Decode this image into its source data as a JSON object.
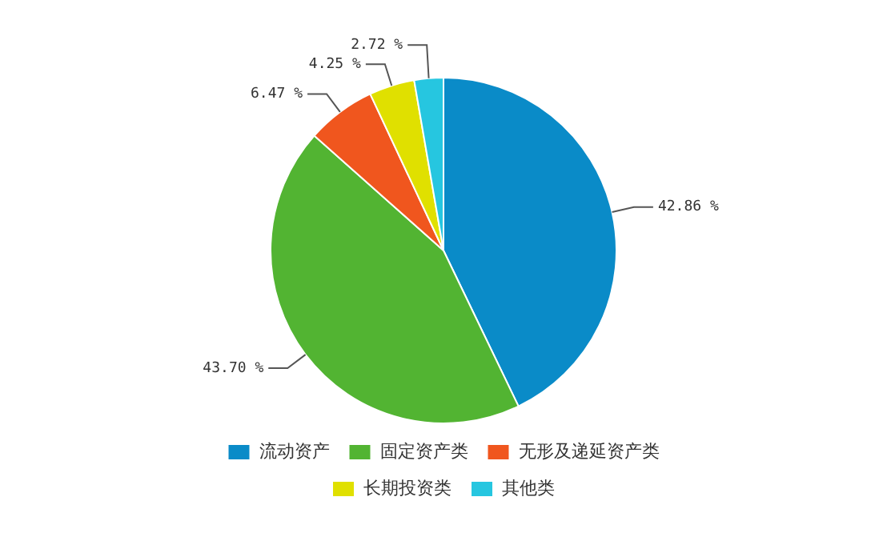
{
  "chart_data": {
    "type": "pie",
    "categories": [
      "流动资产",
      "固定资产类",
      "无形及递延资产类",
      "长期投资类",
      "其他类"
    ],
    "values": [
      42.86,
      43.7,
      6.47,
      4.25,
      2.72
    ],
    "colors": [
      "#0a8bc8",
      "#52b432",
      "#f0561e",
      "#e0e000",
      "#26c6e0"
    ],
    "value_labels": [
      "42.86 %",
      "43.70 %",
      "6.47 %",
      "4.25 %",
      "2.72 %"
    ],
    "legend": "bottom"
  }
}
